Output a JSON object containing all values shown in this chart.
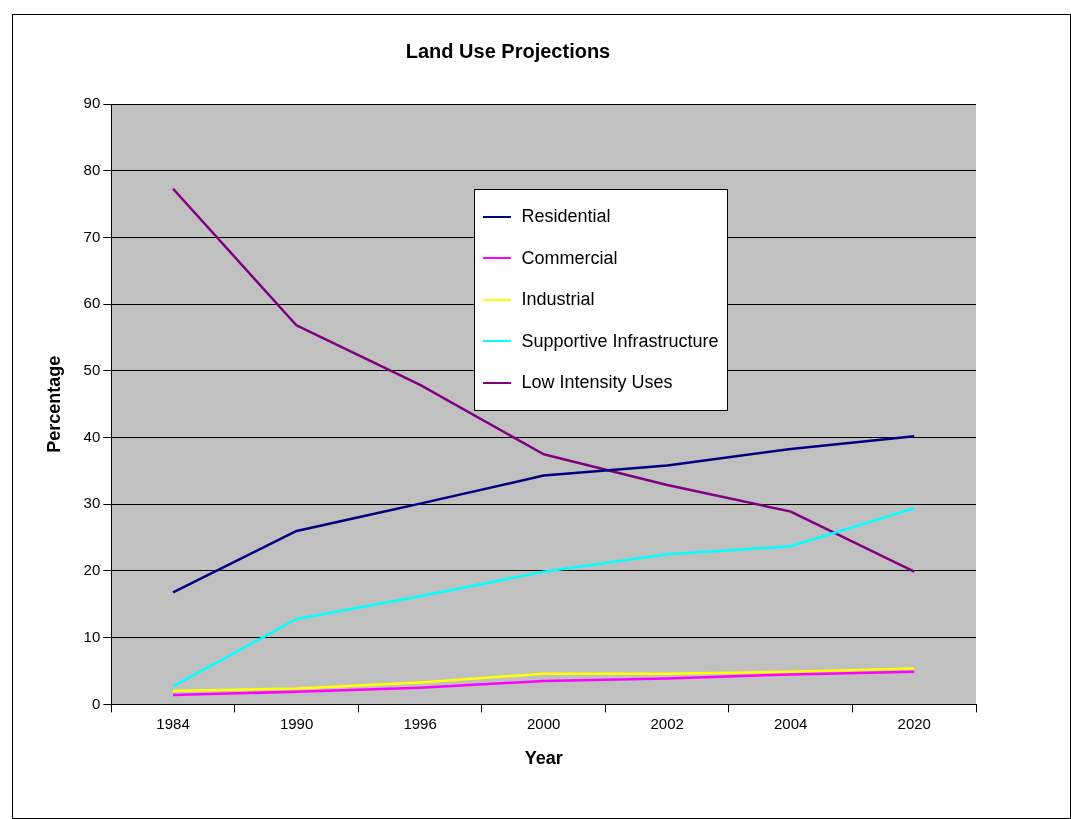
{
  "chart_data": {
    "type": "line",
    "title": "Land Use Projections",
    "xlabel": "Year",
    "ylabel": "Percentage",
    "categories": [
      "1984",
      "1990",
      "1996",
      "2000",
      "2002",
      "2004",
      "2020"
    ],
    "series": [
      {
        "name": "Residential",
        "color": "#000080",
        "values": [
          16.8,
          26.0,
          30.1,
          34.3,
          35.8,
          38.3,
          40.2
        ]
      },
      {
        "name": "Commercial",
        "color": "#ff00ff",
        "values": [
          1.4,
          1.9,
          2.5,
          3.5,
          3.9,
          4.5,
          4.9
        ]
      },
      {
        "name": "Industrial",
        "color": "#ffff00",
        "values": [
          2.0,
          2.4,
          3.3,
          4.6,
          4.6,
          4.9,
          5.4
        ]
      },
      {
        "name": "Supportive Infrastructure",
        "color": "#00ffff",
        "values": [
          2.7,
          12.8,
          16.2,
          19.9,
          22.5,
          23.7,
          29.4
        ]
      },
      {
        "name": "Low Intensity Uses",
        "color": "#800080",
        "values": [
          77.3,
          56.8,
          47.9,
          37.5,
          32.9,
          28.9,
          19.9
        ]
      }
    ],
    "ylim": [
      0,
      90
    ],
    "yticks": [
      0,
      10,
      20,
      30,
      40,
      50,
      60,
      70,
      80,
      90
    ],
    "grid": "y",
    "legend": "top",
    "marker": "none",
    "line_style": "solid"
  }
}
